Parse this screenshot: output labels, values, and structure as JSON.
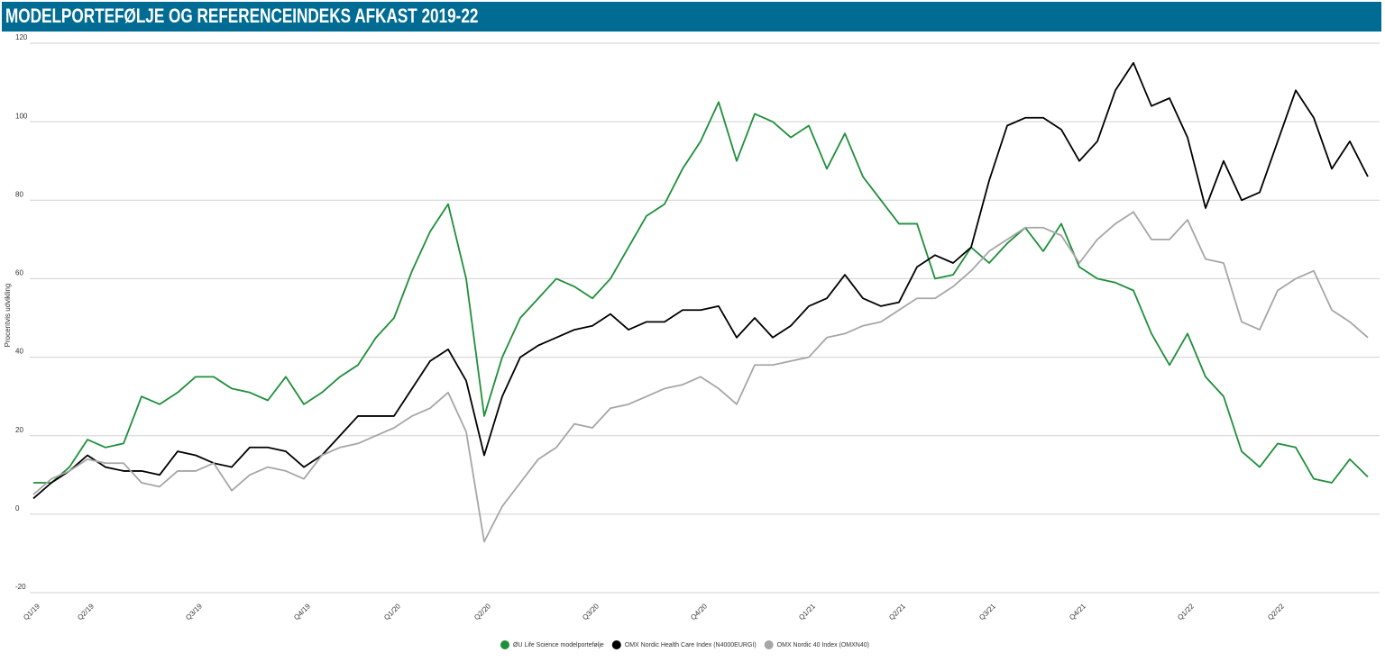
{
  "chart_data": {
    "type": "line",
    "title": "MODELPORTEFØLJE OG REFERENCEINDEKS AFKAST 2019-22",
    "y_label": "Procentvis udvikling",
    "categories": [
      "Q1/19",
      null,
      null,
      "Q2/19",
      null,
      null,
      null,
      null,
      null,
      "Q3/19",
      null,
      null,
      null,
      null,
      null,
      "Q4/19",
      null,
      null,
      null,
      null,
      "Q1/20",
      null,
      null,
      null,
      null,
      "Q2/20",
      null,
      null,
      null,
      null,
      null,
      "Q3/20",
      null,
      null,
      null,
      null,
      null,
      "Q4/20",
      null,
      null,
      null,
      null,
      null,
      "Q1/21",
      null,
      null,
      null,
      null,
      "Q2/21",
      null,
      null,
      null,
      null,
      "Q3/21",
      null,
      null,
      null,
      null,
      "Q4/21",
      null,
      null,
      null,
      null,
      null,
      "Q1/22",
      null,
      null,
      null,
      null,
      "Q2/22",
      null,
      null,
      null,
      null,
      null
    ],
    "series": [
      {
        "name": "ØU Life Science modelportefølje",
        "color": "#1e8f3a",
        "values": [
          8,
          8,
          12,
          19,
          17,
          18,
          30,
          28,
          31,
          35,
          35,
          32,
          31,
          29,
          35,
          28,
          31,
          35,
          38,
          45,
          50,
          62,
          72,
          79,
          60,
          25,
          40,
          50,
          55,
          60,
          58,
          55,
          60,
          68,
          76,
          79,
          88,
          95,
          105,
          90,
          102,
          100,
          96,
          99,
          88,
          97,
          86,
          80,
          74,
          74,
          60,
          61,
          68,
          64,
          69,
          73,
          67,
          74,
          63,
          60,
          59,
          57,
          46,
          38,
          46,
          35,
          30,
          16,
          12,
          18,
          17,
          9,
          8,
          14,
          9.5
        ]
      },
      {
        "name": "OMX Nordic Health Care Index (N4000EURGI)",
        "color": "#000000",
        "values": [
          4,
          8,
          11,
          15,
          12,
          11,
          11,
          10,
          16,
          15,
          13,
          12,
          17,
          17,
          16,
          12,
          15,
          20,
          25,
          25,
          25,
          32,
          39,
          42,
          34,
          15,
          30,
          40,
          43,
          45,
          47,
          48,
          51,
          47,
          49,
          49,
          52,
          52,
          53,
          45,
          50,
          45,
          48,
          53,
          55,
          61,
          55,
          53,
          54,
          63,
          66,
          64,
          68,
          85,
          99,
          101,
          101,
          98,
          90,
          95,
          108,
          115,
          104,
          106,
          96,
          78,
          90,
          80,
          82,
          95,
          108,
          101,
          88,
          95,
          86
        ]
      },
      {
        "name": "OMX Nordic 40 Index (OMXN40)",
        "color": "#a6a6a6",
        "values": [
          5,
          9,
          11,
          14,
          13,
          13,
          8,
          7,
          11,
          11,
          13,
          6,
          10,
          12,
          11,
          9,
          15,
          17,
          18,
          20,
          22,
          25,
          27,
          31,
          21,
          -7,
          2,
          8,
          14,
          17,
          23,
          22,
          27,
          28,
          30,
          32,
          33,
          35,
          32,
          28,
          38,
          38,
          39,
          40,
          45,
          46,
          48,
          49,
          52,
          55,
          55,
          58,
          62,
          67,
          70,
          73,
          73,
          71,
          64,
          70,
          74,
          77,
          70,
          70,
          75,
          65,
          64,
          49,
          47,
          57,
          60,
          62,
          52,
          49,
          45
        ]
      }
    ],
    "ylim": [
      -20,
      120
    ],
    "yticks": [
      -20,
      0,
      20,
      40,
      60,
      80,
      100,
      120
    ],
    "grid": true
  }
}
